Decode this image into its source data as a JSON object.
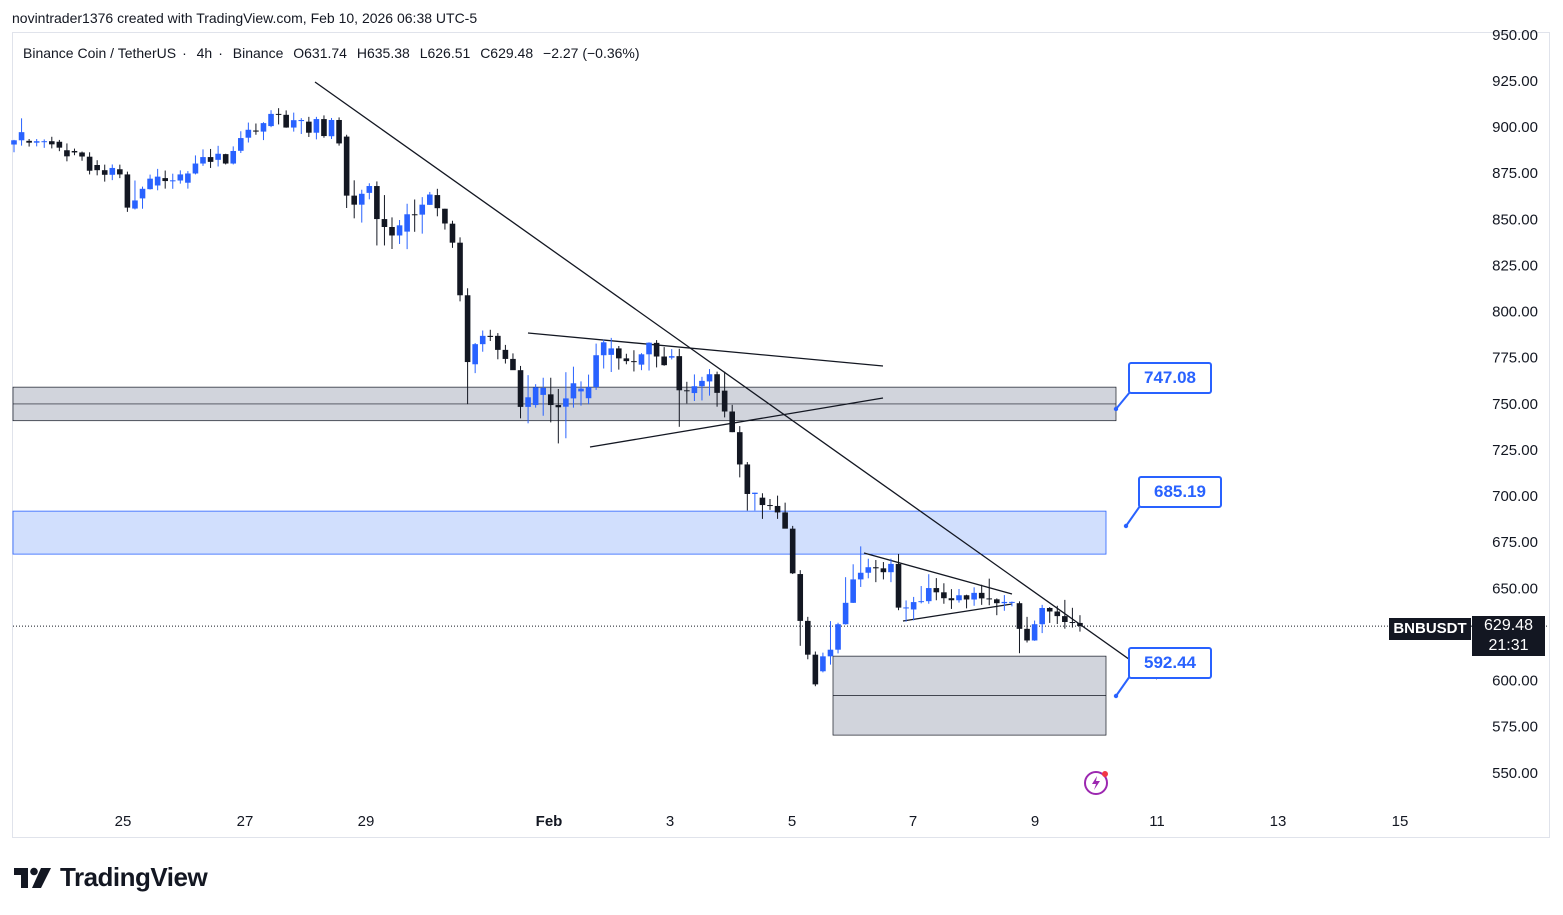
{
  "caption": "novintrader1376 created with TradingView.com, Feb 10, 2026 06:38 UTC-5",
  "header": {
    "pair": "Binance Coin / TetherUS",
    "interval": "4h",
    "exchange": "Binance",
    "open": "O631.74",
    "high": "H635.38",
    "low": "L626.51",
    "close": "C629.48",
    "change": "−2.27 (−0.36%)"
  },
  "price_tag": {
    "symbol": "BNBUSDT",
    "price": "629.48",
    "countdown": "21:31"
  },
  "footer": {
    "brand": "TradingView"
  },
  "colors": {
    "up": "#2962ff",
    "down": "#131722",
    "zone_gray": "#d1d4dc",
    "zone_blue": "#d1dffd",
    "accent": "#2962ff"
  },
  "chart_data": {
    "type": "candlestick",
    "title": "",
    "ylim": [
      540,
      955
    ],
    "y_ticks": [
      "950.00",
      "925.00",
      "900.00",
      "875.00",
      "850.00",
      "825.00",
      "800.00",
      "775.00",
      "750.00",
      "725.00",
      "700.00",
      "675.00",
      "650.00",
      "625.00",
      "600.00",
      "575.00",
      "550.00"
    ],
    "x_ticks": [
      "25",
      "27",
      "29",
      "Feb",
      "3",
      "5",
      "7",
      "9",
      "11",
      "13",
      "15"
    ],
    "candles": [
      [
        890.5,
        892.8,
        886.3,
        893.0
      ],
      [
        892.8,
        897.2,
        889.9,
        904.7
      ],
      [
        892.5,
        891.5,
        889.4,
        893.5
      ],
      [
        891.5,
        892.3,
        889.5,
        893.5
      ],
      [
        892.3,
        892.3,
        888.7,
        893.3
      ],
      [
        892.3,
        890.6,
        888.4,
        894.7
      ],
      [
        892.0,
        888.8,
        886.9,
        893.0
      ],
      [
        887.4,
        884.1,
        881.4,
        891.1
      ],
      [
        887.0,
        886.2,
        884.7,
        888.3
      ],
      [
        886.2,
        884.0,
        881.7,
        886.7
      ],
      [
        883.9,
        876.3,
        874.3,
        886.3
      ],
      [
        879.4,
        876.6,
        873.8,
        882.0
      ],
      [
        876.6,
        874.1,
        870.4,
        879.6
      ],
      [
        874.1,
        877.8,
        871.2,
        879.7
      ],
      [
        877.1,
        874.3,
        872.3,
        879.6
      ],
      [
        874.3,
        856.3,
        854.0,
        875.8
      ],
      [
        855.8,
        860.2,
        855.3,
        871.0
      ],
      [
        861.3,
        866.5,
        855.7,
        867.7
      ],
      [
        866.3,
        872.0,
        866.1,
        874.2
      ],
      [
        868.3,
        873.1,
        865.7,
        877.3
      ],
      [
        872.3,
        870.7,
        866.6,
        876.4
      ],
      [
        870.7,
        871.1,
        866.5,
        874.7
      ],
      [
        871.0,
        874.3,
        869.3,
        876.5
      ],
      [
        869.8,
        874.8,
        866.6,
        876.1
      ],
      [
        874.8,
        880.2,
        874.3,
        884.6
      ],
      [
        880.2,
        883.7,
        878.9,
        887.9
      ],
      [
        883.7,
        881.1,
        877.8,
        888.1
      ],
      [
        882.2,
        885.5,
        878.6,
        889.8
      ],
      [
        885.3,
        880.2,
        879.7,
        885.5
      ],
      [
        880.2,
        887.0,
        879.7,
        889.5
      ],
      [
        887.1,
        894.0,
        885.9,
        897.7
      ],
      [
        894.2,
        898.5,
        891.6,
        902.4
      ],
      [
        898.1,
        897.5,
        895.8,
        901.9
      ],
      [
        897.5,
        902.1,
        892.9,
        902.6
      ],
      [
        900.5,
        907.1,
        899.9,
        909.1
      ],
      [
        907.1,
        906.6,
        901.4,
        910.2
      ],
      [
        906.6,
        899.7,
        899.6,
        909.0
      ],
      [
        899.7,
        903.7,
        897.5,
        907.8
      ],
      [
        903.2,
        903.8,
        896.2,
        904.8
      ],
      [
        902.9,
        896.9,
        894.6,
        905.5
      ],
      [
        896.9,
        904.3,
        893.3,
        905.5
      ],
      [
        904.3,
        895.1,
        894.2,
        906.3
      ],
      [
        895.0,
        903.8,
        893.5,
        904.9
      ],
      [
        903.8,
        891.1,
        889.9,
        905.2
      ],
      [
        894.8,
        862.8,
        856.1,
        895.8
      ],
      [
        862.8,
        857.9,
        850.5,
        871.1
      ],
      [
        857.9,
        863.8,
        848.2,
        866.0
      ],
      [
        864.3,
        868.0,
        860.8,
        869.5
      ],
      [
        868.0,
        850.1,
        835.8,
        870.5
      ],
      [
        850.1,
        845.8,
        835.8,
        863.1
      ],
      [
        845.8,
        841.2,
        833.9,
        851.0
      ],
      [
        841.2,
        846.7,
        836.6,
        849.6
      ],
      [
        843.3,
        852.7,
        833.8,
        858.4
      ],
      [
        852.7,
        852.4,
        843.2,
        860.7
      ],
      [
        852.5,
        857.9,
        842.2,
        862.0
      ],
      [
        857.8,
        863.4,
        857.8,
        864.8
      ],
      [
        863.1,
        856.0,
        851.6,
        866.5
      ],
      [
        855.7,
        847.7,
        844.4,
        855.7
      ],
      [
        847.6,
        837.3,
        834.5,
        849.2
      ],
      [
        837.3,
        808.8,
        805.5,
        840.2
      ],
      [
        808.8,
        772.6,
        749.8,
        812.6
      ],
      [
        771.4,
        782.3,
        766.6,
        782.9
      ],
      [
        782.3,
        786.8,
        778.2,
        789.7
      ],
      [
        786.8,
        786.2,
        784.0,
        790.1
      ],
      [
        786.8,
        779.2,
        774.1,
        788.3
      ],
      [
        779.2,
        774.3,
        771.8,
        781.9
      ],
      [
        774.3,
        768.2,
        769.1,
        777.3
      ],
      [
        768.2,
        748.3,
        742.1,
        770.5
      ],
      [
        748.3,
        753.5,
        739.4,
        765.5
      ],
      [
        749.3,
        758.9,
        747.9,
        760.6
      ],
      [
        754.8,
        758.6,
        743.5,
        764.1
      ],
      [
        755.1,
        749.3,
        739.9,
        764.1
      ],
      [
        749.3,
        748.1,
        728.5,
        758.0
      ],
      [
        748.4,
        752.9,
        731.3,
        767.1
      ],
      [
        752.9,
        761.1,
        747.9,
        770.1
      ],
      [
        756.7,
        758.2,
        749.0,
        762.1
      ],
      [
        753.0,
        759.0,
        749.8,
        765.8
      ],
      [
        759.0,
        776.3,
        757.5,
        782.6
      ],
      [
        776.3,
        783.3,
        769.1,
        784.7
      ],
      [
        776.5,
        780.0,
        767.2,
        785.7
      ],
      [
        780.0,
        774.6,
        768.5,
        781.3
      ],
      [
        774.6,
        773.1,
        771.4,
        777.1
      ],
      [
        773.1,
        772.7,
        767.5,
        779.0
      ],
      [
        771.2,
        776.8,
        768.2,
        777.4
      ],
      [
        776.8,
        783.1,
        768.0,
        783.3
      ],
      [
        783.0,
        775.6,
        769.7,
        784.5
      ],
      [
        775.6,
        770.9,
        770.6,
        780.7
      ],
      [
        775.0,
        775.8,
        774.0,
        779.6
      ],
      [
        775.8,
        757.3,
        737.5,
        779.8
      ],
      [
        757.3,
        756.9,
        750.2,
        761.9
      ],
      [
        755.8,
        759.5,
        751.5,
        765.9
      ],
      [
        759.5,
        762.4,
        751.8,
        764.6
      ],
      [
        762.1,
        766.0,
        754.4,
        768.8
      ],
      [
        766.0,
        755.9,
        748.4,
        767.4
      ],
      [
        757.1,
        745.8,
        742.6,
        767.4
      ],
      [
        745.8,
        734.6,
        734.6,
        749.4
      ],
      [
        734.6,
        717.1,
        710.1,
        737.9
      ],
      [
        717.1,
        701.1,
        692.1,
        718.4
      ],
      [
        701.1,
        701.8,
        692.1,
        701.8
      ],
      [
        699.1,
        695.1,
        687.6,
        701.5
      ],
      [
        695.1,
        694.6,
        692.5,
        698.4
      ],
      [
        694.6,
        691.1,
        687.6,
        700.2
      ],
      [
        691.1,
        682.3,
        684.0,
        696.4
      ],
      [
        682.3,
        658.1,
        657.7,
        683.8
      ],
      [
        657.7,
        632.3,
        618.8,
        659.8
      ],
      [
        632.3,
        614.0,
        611.5,
        634.5
      ],
      [
        614.0,
        597.9,
        596.9,
        615.7
      ],
      [
        605.0,
        613.1,
        604.4,
        615.1
      ],
      [
        613.1,
        616.7,
        608.6,
        632.2
      ],
      [
        616.7,
        630.5,
        614.7,
        631.3
      ],
      [
        630.5,
        642.1,
        630.3,
        656.0
      ],
      [
        642.1,
        654.8,
        642.0,
        663.0
      ],
      [
        654.8,
        658.4,
        650.7,
        672.7
      ],
      [
        658.4,
        661.4,
        655.4,
        666.0
      ],
      [
        661.4,
        660.8,
        653.3,
        665.3
      ],
      [
        660.8,
        658.7,
        654.8,
        664.2
      ],
      [
        658.7,
        663.2,
        653.3,
        666.0
      ],
      [
        663.2,
        639.5,
        638.1,
        668.6
      ],
      [
        639.5,
        639.6,
        631.9,
        643.4
      ],
      [
        638.5,
        642.5,
        632.6,
        645.3
      ],
      [
        642.5,
        643.0,
        641.8,
        651.2
      ],
      [
        643.0,
        650.1,
        641.6,
        657.6
      ],
      [
        650.1,
        647.8,
        643.5,
        655.5
      ],
      [
        647.8,
        644.6,
        641.6,
        652.7
      ],
      [
        644.6,
        643.5,
        638.8,
        649.5
      ],
      [
        643.5,
        646.2,
        642.2,
        649.6
      ],
      [
        646.2,
        643.9,
        639.1,
        646.5
      ],
      [
        643.9,
        647.5,
        640.5,
        650.5
      ],
      [
        647.5,
        644.5,
        641.0,
        651.9
      ],
      [
        644.5,
        644.0,
        640.8,
        655.2
      ],
      [
        644.0,
        641.9,
        635.4,
        644.5
      ],
      [
        641.9,
        642.6,
        637.8,
        646.3
      ],
      [
        642.6,
        642.6,
        640.2,
        642.8
      ],
      [
        641.9,
        628.0,
        614.8,
        642.9
      ],
      [
        628.0,
        621.7,
        620.6,
        634.5
      ],
      [
        621.7,
        630.5,
        621.5,
        632.5
      ],
      [
        630.5,
        639.3,
        625.7,
        641.0
      ],
      [
        639.3,
        637.4,
        631.2,
        639.8
      ],
      [
        637.4,
        634.9,
        630.6,
        640.5
      ],
      [
        634.9,
        631.7,
        628.1,
        643.7
      ],
      [
        631.7,
        631.2,
        628.7,
        639.4
      ],
      [
        631.2,
        629.5,
        626.5,
        635.4
      ]
    ],
    "zones": [
      {
        "color": "gray",
        "y_top": 759.0,
        "y_bottom": 740.8,
        "mid": 749.9,
        "label": "747.08"
      },
      {
        "color": "blue",
        "y_top": 691.8,
        "y_bottom": 668.5,
        "mid": null,
        "label": "685.19"
      },
      {
        "color": "gray",
        "y_top": 613.2,
        "y_bottom": 570.4,
        "mid": 591.8,
        "label": "592.44"
      }
    ]
  }
}
